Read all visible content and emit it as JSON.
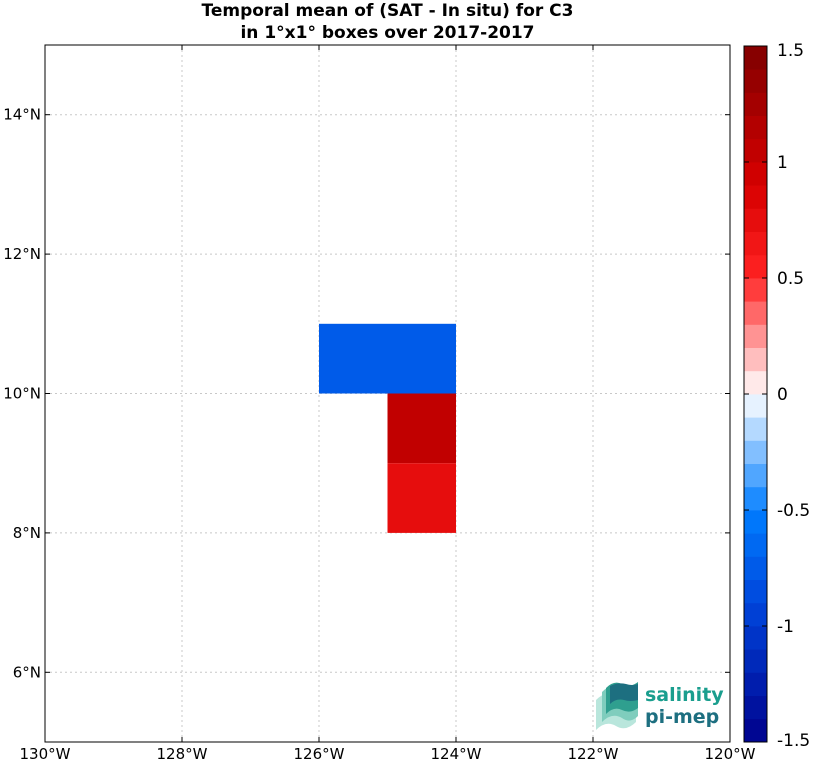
{
  "title": {
    "line1": "Temporal mean of (SAT - In situ) for C3",
    "line2": "in 1°x1° boxes over 2017-2017"
  },
  "logo": {
    "line1": "salinity",
    "line2": "pi-mep"
  },
  "colors": {
    "cmap_min": "#00008b",
    "cmap_mid": "#ffffff",
    "cmap_max": "#800000",
    "grid": "#c8c8c8"
  },
  "chart_data": {
    "type": "heatmap",
    "title": "Temporal mean of (SAT - In situ) for C3 in 1°x1° boxes over 2017-2017",
    "xlim": [
      -130,
      -120
    ],
    "ylim": [
      5,
      15
    ],
    "x_ticks": [
      -130,
      -128,
      -126,
      -124,
      -122,
      -120
    ],
    "x_tick_labels": [
      "130°W",
      "128°W",
      "126°W",
      "124°W",
      "122°W",
      "120°W"
    ],
    "y_ticks": [
      6,
      8,
      10,
      12,
      14
    ],
    "y_tick_labels": [
      "6°N",
      "8°N",
      "10°N",
      "12°N",
      "14°N"
    ],
    "grid": true,
    "cells": [
      {
        "lon_min": -126,
        "lon_max": -124,
        "lat_min": 10,
        "lat_max": 11,
        "value": -0.75
      },
      {
        "lon_min": -125,
        "lon_max": -124,
        "lat_min": 9,
        "lat_max": 10,
        "value": 1.05
      },
      {
        "lon_min": -125,
        "lon_max": -124,
        "lat_min": 8,
        "lat_max": 9,
        "value": 0.75
      }
    ],
    "colorbar": {
      "range": [
        -1.5,
        1.5
      ],
      "levels": 30,
      "ticks": [
        1.5,
        1,
        0.5,
        0,
        -0.5,
        -1,
        -1.5
      ],
      "tick_labels": [
        "1.5",
        "1",
        "0.5",
        "0",
        "-0.5",
        "-1",
        "-1.5"
      ]
    }
  }
}
